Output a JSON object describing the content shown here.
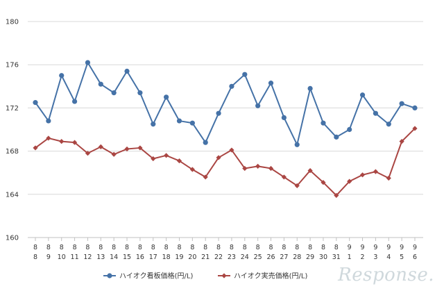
{
  "chart_data": {
    "type": "line",
    "categories": [
      [
        "8",
        "8"
      ],
      [
        "8",
        "9"
      ],
      [
        "8",
        "10"
      ],
      [
        "8",
        "11"
      ],
      [
        "8",
        "12"
      ],
      [
        "8",
        "13"
      ],
      [
        "8",
        "14"
      ],
      [
        "8",
        "15"
      ],
      [
        "8",
        "16"
      ],
      [
        "8",
        "17"
      ],
      [
        "8",
        "18"
      ],
      [
        "8",
        "19"
      ],
      [
        "8",
        "20"
      ],
      [
        "8",
        "21"
      ],
      [
        "8",
        "22"
      ],
      [
        "8",
        "23"
      ],
      [
        "8",
        "24"
      ],
      [
        "8",
        "25"
      ],
      [
        "8",
        "26"
      ],
      [
        "8",
        "27"
      ],
      [
        "8",
        "28"
      ],
      [
        "8",
        "29"
      ],
      [
        "8",
        "30"
      ],
      [
        "8",
        "31"
      ],
      [
        "9",
        "1"
      ],
      [
        "9",
        "2"
      ],
      [
        "9",
        "3"
      ],
      [
        "9",
        "4"
      ],
      [
        "9",
        "5"
      ],
      [
        "9",
        "6"
      ]
    ],
    "series": [
      {
        "name": "ハイオク看板価格(円/L)",
        "color": "#4572a7",
        "marker": "circle",
        "values": [
          172.5,
          170.8,
          175.0,
          172.6,
          176.2,
          174.2,
          173.4,
          175.4,
          173.4,
          170.5,
          173.0,
          170.8,
          170.6,
          168.8,
          171.5,
          174.0,
          175.1,
          172.2,
          174.3,
          171.1,
          168.6,
          173.8,
          170.6,
          169.3,
          170.0,
          173.2,
          171.5,
          170.5,
          172.4,
          172.0
        ]
      },
      {
        "name": "ハイオク実売価格(円/L)",
        "color": "#aa4643",
        "marker": "diamond",
        "values": [
          168.3,
          169.2,
          168.9,
          168.8,
          167.8,
          168.4,
          167.7,
          168.2,
          168.3,
          167.3,
          167.6,
          167.1,
          166.3,
          165.6,
          167.4,
          168.1,
          166.4,
          166.6,
          166.4,
          165.6,
          164.8,
          166.2,
          165.1,
          163.9,
          165.2,
          165.8,
          166.1,
          165.5,
          168.9,
          170.1
        ]
      }
    ],
    "ylim": [
      160,
      180
    ],
    "yticks": [
      "160",
      "164",
      "168",
      "172",
      "176",
      "180"
    ],
    "grid": true,
    "legend_position": "bottom"
  },
  "watermark": "Response."
}
